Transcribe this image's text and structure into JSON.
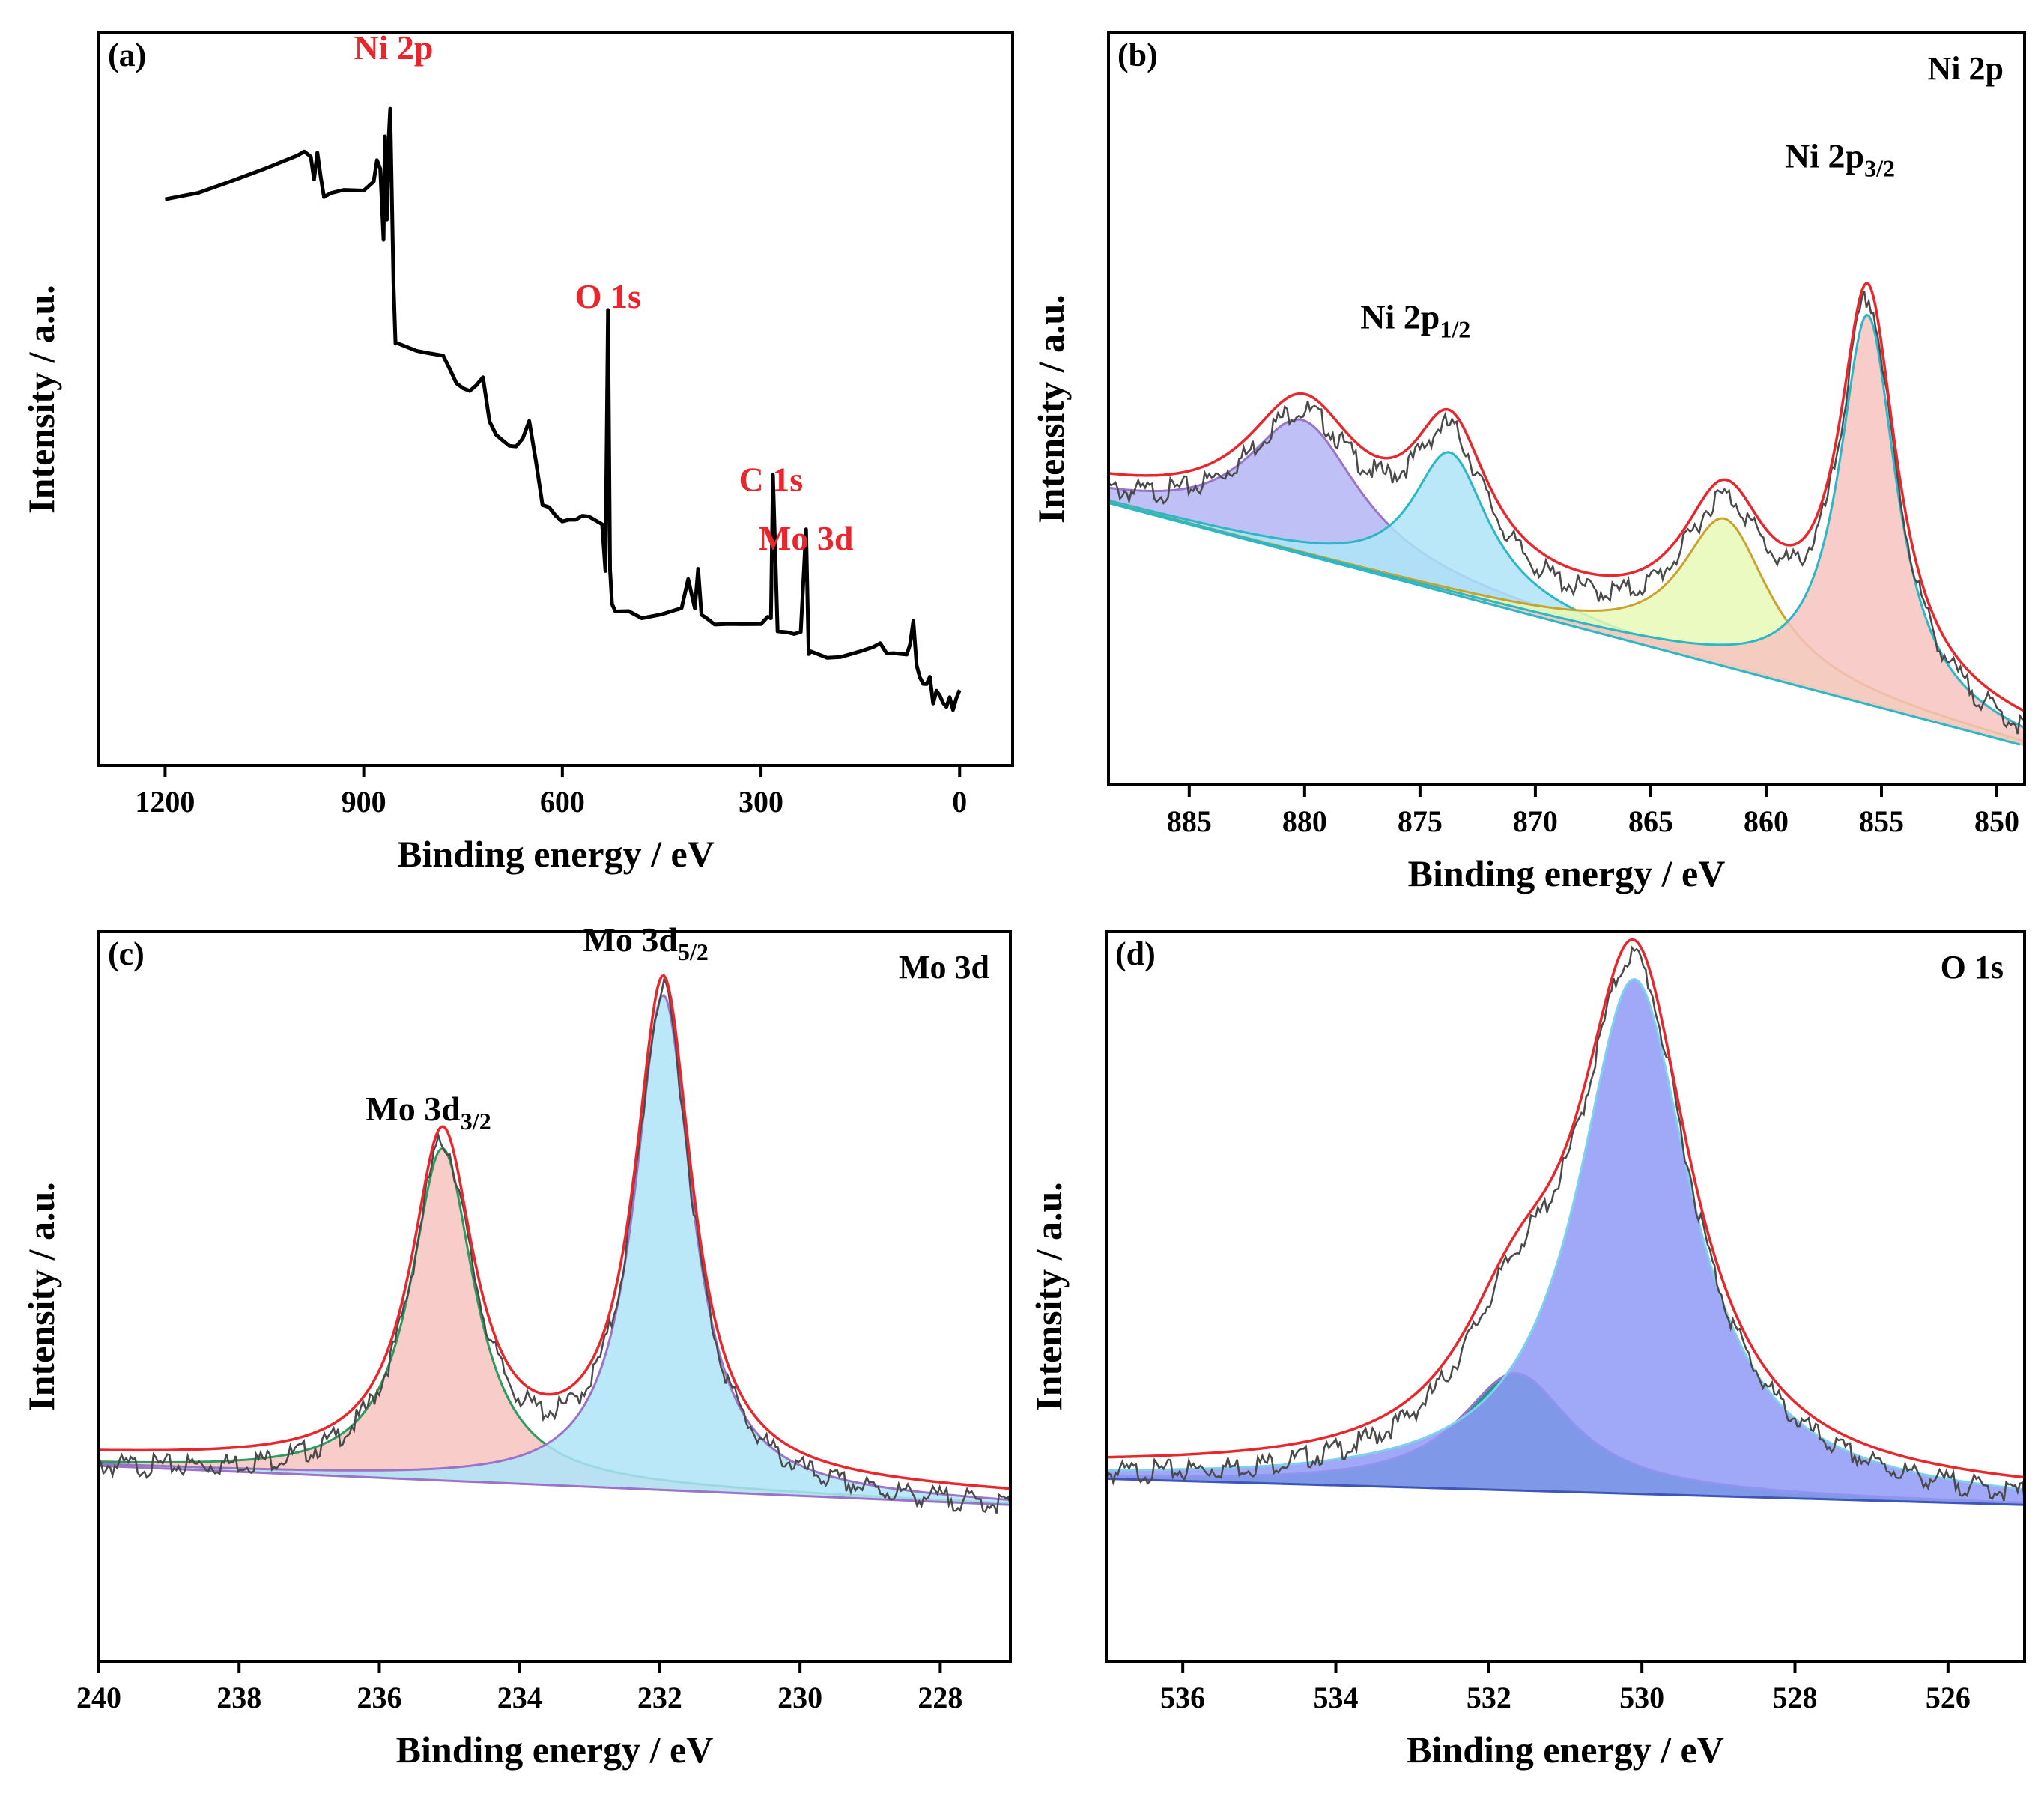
{
  "chart_data": [
    {
      "panel": "(a)",
      "type": "line",
      "xlabel": "Binding energy / eV",
      "ylabel": "Intensity / a.u.",
      "xlim": [
        1300,
        -80
      ],
      "ylim": [
        0,
        1.12
      ],
      "xticks": [
        1200,
        900,
        600,
        300,
        0
      ],
      "grid": false,
      "annotations": [
        {
          "text": "Ni 2p",
          "x": 855,
          "y": 1.08,
          "color": "#e8262b"
        },
        {
          "text": "O 1s",
          "x": 531,
          "y": 0.7,
          "color": "#e8262b"
        },
        {
          "text": "C 1s",
          "x": 285,
          "y": 0.42,
          "color": "#e8262b"
        },
        {
          "text": "Mo 3d",
          "x": 232,
          "y": 0.33,
          "color": "#e8262b"
        }
      ],
      "series": [
        {
          "color": "#000000",
          "width": 5,
          "x": [
            1200,
            1150,
            1100,
            1050,
            1000,
            990,
            980,
            975,
            970,
            965,
            960,
            950,
            930,
            900,
            885,
            880,
            875,
            870,
            868,
            865,
            862,
            860,
            855,
            852,
            850,
            840,
            820,
            800,
            780,
            770,
            760,
            750,
            740,
            730,
            720,
            710,
            700,
            690,
            680,
            670,
            660,
            650,
            640,
            630,
            620,
            610,
            600,
            590,
            580,
            570,
            560,
            540,
            535,
            531,
            528,
            525,
            520,
            500,
            480,
            450,
            420,
            410,
            400,
            395,
            390,
            380,
            370,
            350,
            330,
            300,
            290,
            285,
            282,
            275,
            260,
            250,
            240,
            232,
            228,
            225,
            220,
            200,
            180,
            150,
            130,
            120,
            110,
            100,
            80,
            75,
            70,
            65,
            60,
            55,
            50,
            45,
            40,
            35,
            30,
            25,
            20,
            15,
            10,
            5,
            0
          ],
          "y": [
            0.86,
            0.875,
            0.89,
            0.91,
            0.93,
            0.935,
            0.93,
            0.9,
            0.94,
            0.9,
            0.87,
            0.88,
            0.88,
            0.88,
            0.89,
            0.92,
            0.91,
            0.8,
            0.96,
            0.83,
            0.96,
            1.0,
            0.74,
            0.65,
            0.65,
            0.645,
            0.64,
            0.635,
            0.63,
            0.6,
            0.58,
            0.575,
            0.57,
            0.58,
            0.59,
            0.52,
            0.5,
            0.5,
            0.49,
            0.49,
            0.5,
            0.53,
            0.47,
            0.4,
            0.39,
            0.38,
            0.37,
            0.375,
            0.375,
            0.38,
            0.38,
            0.37,
            0.3,
            0.7,
            0.3,
            0.25,
            0.24,
            0.24,
            0.23,
            0.23,
            0.24,
            0.28,
            0.24,
            0.3,
            0.23,
            0.22,
            0.22,
            0.22,
            0.22,
            0.22,
            0.23,
            0.23,
            0.45,
            0.21,
            0.2,
            0.2,
            0.2,
            0.36,
            0.17,
            0.17,
            0.17,
            0.17,
            0.17,
            0.18,
            0.185,
            0.19,
            0.175,
            0.175,
            0.17,
            0.18,
            0.22,
            0.15,
            0.13,
            0.12,
            0.12,
            0.13,
            0.1,
            0.12,
            0.11,
            0.1,
            0.09,
            0.11,
            0.09,
            0.1,
            0.11
          ]
        }
      ]
    },
    {
      "panel": "(b)",
      "type": "area",
      "title": "Ni 2p",
      "xlabel": "Binding energy / eV",
      "ylabel": "Intensity / a.u.",
      "xlim": [
        888.5,
        848.8
      ],
      "ylim": [
        0,
        1.12
      ],
      "xticks": [
        885,
        880,
        875,
        870,
        865,
        860,
        855,
        850
      ],
      "grid": false,
      "baseline": {
        "x": [
          888.5,
          849
        ],
        "y": [
          0.42,
          0.06
        ],
        "color": "#2bb7c5"
      },
      "components": [
        {
          "center": 880.1,
          "height": 0.2,
          "width": 3.0,
          "fill": "#b3b5f5",
          "stroke": "#9a74c8"
        },
        {
          "center": 873.7,
          "height": 0.21,
          "width": 2.0,
          "fill": "#aee4f8",
          "stroke": "#2bb7c5"
        },
        {
          "center": 861.8,
          "height": 0.22,
          "width": 2.3,
          "fill": "#e6f9b5",
          "stroke": "#c9a32c"
        },
        {
          "center": 855.6,
          "height": 0.58,
          "width": 1.5,
          "fill": "#f6c3c0",
          "stroke": "#2bb7c5"
        }
      ],
      "envelope_color": "#e8262b",
      "raw_color": "#4a4a4a",
      "annotations": [
        {
          "text": "Ni 2p",
          "sub": "1/2",
          "x": 875.2,
          "y": 0.68,
          "color": "#000000"
        },
        {
          "text": "Ni 2p",
          "sub": "3/2",
          "x": 856.8,
          "y": 0.92,
          "color": "#000000"
        }
      ]
    },
    {
      "panel": "(c)",
      "type": "area",
      "title": "Mo 3d",
      "xlabel": "Binding energy / eV",
      "ylabel": "Intensity / a.u.",
      "xlim": [
        240,
        227
      ],
      "ylim": [
        0,
        1.12
      ],
      "xticks": [
        240,
        238,
        236,
        234,
        232,
        230,
        228
      ],
      "grid": false,
      "baseline": {
        "x": [
          240,
          227
        ],
        "y": [
          0.3,
          0.24
        ],
        "color": "#9a74c8"
      },
      "components": [
        {
          "center": 235.1,
          "height": 0.51,
          "width": 0.55,
          "fill": "#f6c3c0",
          "stroke": "#2e9a5c"
        },
        {
          "center": 231.95,
          "height": 0.76,
          "width": 0.5,
          "fill": "#aee4f8",
          "stroke": "#9a74c8"
        }
      ],
      "envelope_color": "#e8262b",
      "raw_color": "#4a4a4a",
      "annotations": [
        {
          "text": "Mo 3d",
          "sub": "3/2",
          "x": 235.3,
          "y": 0.83,
          "color": "#000000"
        },
        {
          "text": "Mo 3d",
          "sub": "5/2",
          "x": 232.2,
          "y": 1.09,
          "color": "#000000"
        }
      ]
    },
    {
      "panel": "(d)",
      "type": "area",
      "title": "O 1s",
      "xlabel": "Binding energy / eV",
      "ylabel": "Intensity / a.u.",
      "xlim": [
        537,
        525
      ],
      "ylim": [
        0,
        1.12
      ],
      "xticks": [
        536,
        534,
        532,
        530,
        528,
        526
      ],
      "grid": false,
      "baseline": {
        "x": [
          537,
          525
        ],
        "y": [
          0.28,
          0.24
        ],
        "color": "#3e56b8"
      },
      "components": [
        {
          "center": 531.65,
          "height": 0.18,
          "width": 0.9,
          "fill": "#008080",
          "stroke": "#9a74c8"
        },
        {
          "center": 530.1,
          "height": 0.79,
          "width": 0.9,
          "fill": "#8f99f7",
          "stroke": "#7fd0ec"
        }
      ],
      "envelope_color": "#e8262b",
      "raw_color": "#4a4a4a",
      "annotations": []
    }
  ]
}
